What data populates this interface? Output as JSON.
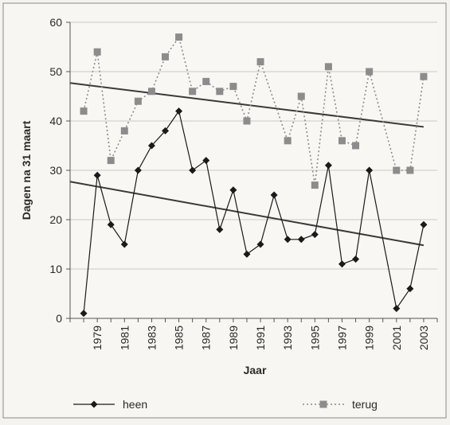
{
  "chart_data": {
    "type": "line",
    "xlabel": "Jaar",
    "ylabel": "Dagen na 31 maart",
    "ylim": [
      0,
      60
    ],
    "yticks": [
      0,
      10,
      20,
      30,
      40,
      50,
      60
    ],
    "xlim": [
      1977,
      2004
    ],
    "xticks": [
      "1979",
      "1981",
      "1983",
      "1985",
      "1987",
      "1989",
      "1991",
      "1993",
      "1995",
      "1997",
      "1999",
      "2001",
      "2003"
    ],
    "grid": "horizontal",
    "legend_position": "bottom",
    "colors": {
      "heen": "#1a1a1a",
      "terug": "#8c8c8c",
      "trend": "#3a3a3a",
      "grid": "#c8c8c8",
      "axis": "#555555"
    },
    "series": [
      {
        "name": "heen",
        "style": "solid",
        "marker": "diamond",
        "points": [
          [
            1978,
            1
          ],
          [
            1979,
            29
          ],
          [
            1980,
            19
          ],
          [
            1981,
            15
          ],
          [
            1982,
            30
          ],
          [
            1983,
            35
          ],
          [
            1984,
            38
          ],
          [
            1985,
            42
          ],
          [
            1986,
            30
          ],
          [
            1987,
            32
          ],
          [
            1988,
            18
          ],
          [
            1989,
            26
          ],
          [
            1990,
            13
          ],
          [
            1991,
            15
          ],
          [
            1992,
            25
          ],
          [
            1993,
            16
          ],
          [
            1994,
            16
          ],
          [
            1995,
            17
          ],
          [
            1996,
            31
          ],
          [
            1997,
            11
          ],
          [
            1998,
            12
          ],
          [
            1999,
            30
          ],
          [
            2001,
            2
          ],
          [
            2002,
            6
          ],
          [
            2003,
            19
          ]
        ],
        "trend": [
          [
            1977,
            27.7
          ],
          [
            2003,
            14.8
          ]
        ]
      },
      {
        "name": "terug",
        "style": "dotted",
        "marker": "square",
        "points": [
          [
            1978,
            42
          ],
          [
            1979,
            54
          ],
          [
            1980,
            32
          ],
          [
            1981,
            38
          ],
          [
            1982,
            44
          ],
          [
            1983,
            46
          ],
          [
            1984,
            53
          ],
          [
            1985,
            57
          ],
          [
            1986,
            46
          ],
          [
            1987,
            48
          ],
          [
            1988,
            46
          ],
          [
            1989,
            47
          ],
          [
            1990,
            40
          ],
          [
            1991,
            52
          ],
          [
            1993,
            36
          ],
          [
            1994,
            45
          ],
          [
            1995,
            27
          ],
          [
            1996,
            51
          ],
          [
            1997,
            36
          ],
          [
            1998,
            35
          ],
          [
            1999,
            50
          ],
          [
            2001,
            30
          ],
          [
            2002,
            30
          ],
          [
            2003,
            49
          ]
        ],
        "trend": [
          [
            1977,
            47.7
          ],
          [
            2003,
            38.8
          ]
        ]
      }
    ]
  }
}
